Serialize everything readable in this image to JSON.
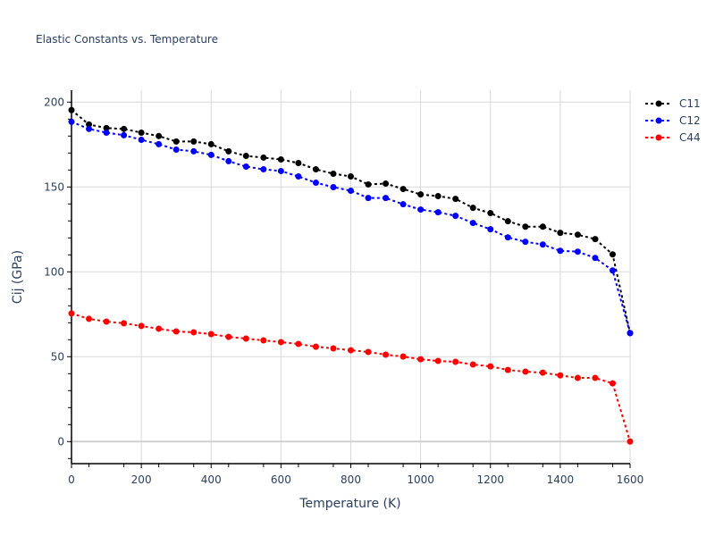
{
  "chart_data": {
    "type": "line",
    "title": "Elastic Constants vs. Temperature",
    "xlabel": "Temperature (K)",
    "ylabel": "Cij (GPa)",
    "xlim": [
      0,
      1600
    ],
    "ylim": [
      -13,
      207
    ],
    "grid": true,
    "legend_position": "top-right",
    "x_ticks": [
      "0",
      "200",
      "400",
      "600",
      "800",
      "1000",
      "1200",
      "1400",
      "1600"
    ],
    "y_ticks": [
      "0",
      "50",
      "100",
      "150",
      "200"
    ],
    "x": [
      0,
      50,
      100,
      150,
      200,
      250,
      300,
      350,
      400,
      450,
      500,
      550,
      600,
      650,
      700,
      750,
      800,
      850,
      900,
      950,
      1000,
      1050,
      1100,
      1150,
      1200,
      1250,
      1300,
      1350,
      1400,
      1450,
      1500,
      1550,
      1600
    ],
    "series": [
      {
        "name": "C11",
        "color": "#000000",
        "values": [
          195.3,
          186.8,
          184.7,
          184.2,
          182.0,
          180.0,
          176.8,
          176.8,
          175.2,
          171.0,
          168.3,
          167.3,
          166.2,
          164.1,
          160.4,
          157.8,
          156.2,
          151.5,
          152.0,
          148.8,
          145.6,
          144.6,
          143.0,
          137.7,
          134.6,
          129.8,
          126.6,
          126.6,
          123.0,
          121.9,
          119.3,
          110.3,
          63.9
        ]
      },
      {
        "name": "C12",
        "color": "#0000ff",
        "values": [
          188.4,
          184.2,
          182.0,
          180.5,
          177.8,
          175.2,
          172.0,
          171.0,
          168.9,
          165.2,
          162.0,
          160.4,
          159.4,
          156.2,
          152.5,
          149.9,
          147.8,
          143.5,
          143.5,
          139.8,
          136.7,
          135.1,
          133.0,
          128.8,
          125.1,
          120.3,
          117.7,
          116.1,
          112.4,
          111.9,
          108.2,
          100.8,
          63.9
        ]
      },
      {
        "name": "C44",
        "color": "#ff0000",
        "values": [
          75.5,
          72.3,
          70.7,
          69.7,
          68.1,
          66.5,
          64.9,
          64.4,
          63.3,
          61.7,
          60.7,
          59.6,
          58.6,
          57.5,
          55.9,
          54.9,
          53.8,
          52.8,
          51.2,
          50.1,
          48.5,
          47.5,
          47.0,
          45.4,
          44.3,
          42.2,
          41.2,
          40.6,
          39.0,
          37.5,
          37.5,
          34.3,
          0.0
        ]
      }
    ]
  }
}
